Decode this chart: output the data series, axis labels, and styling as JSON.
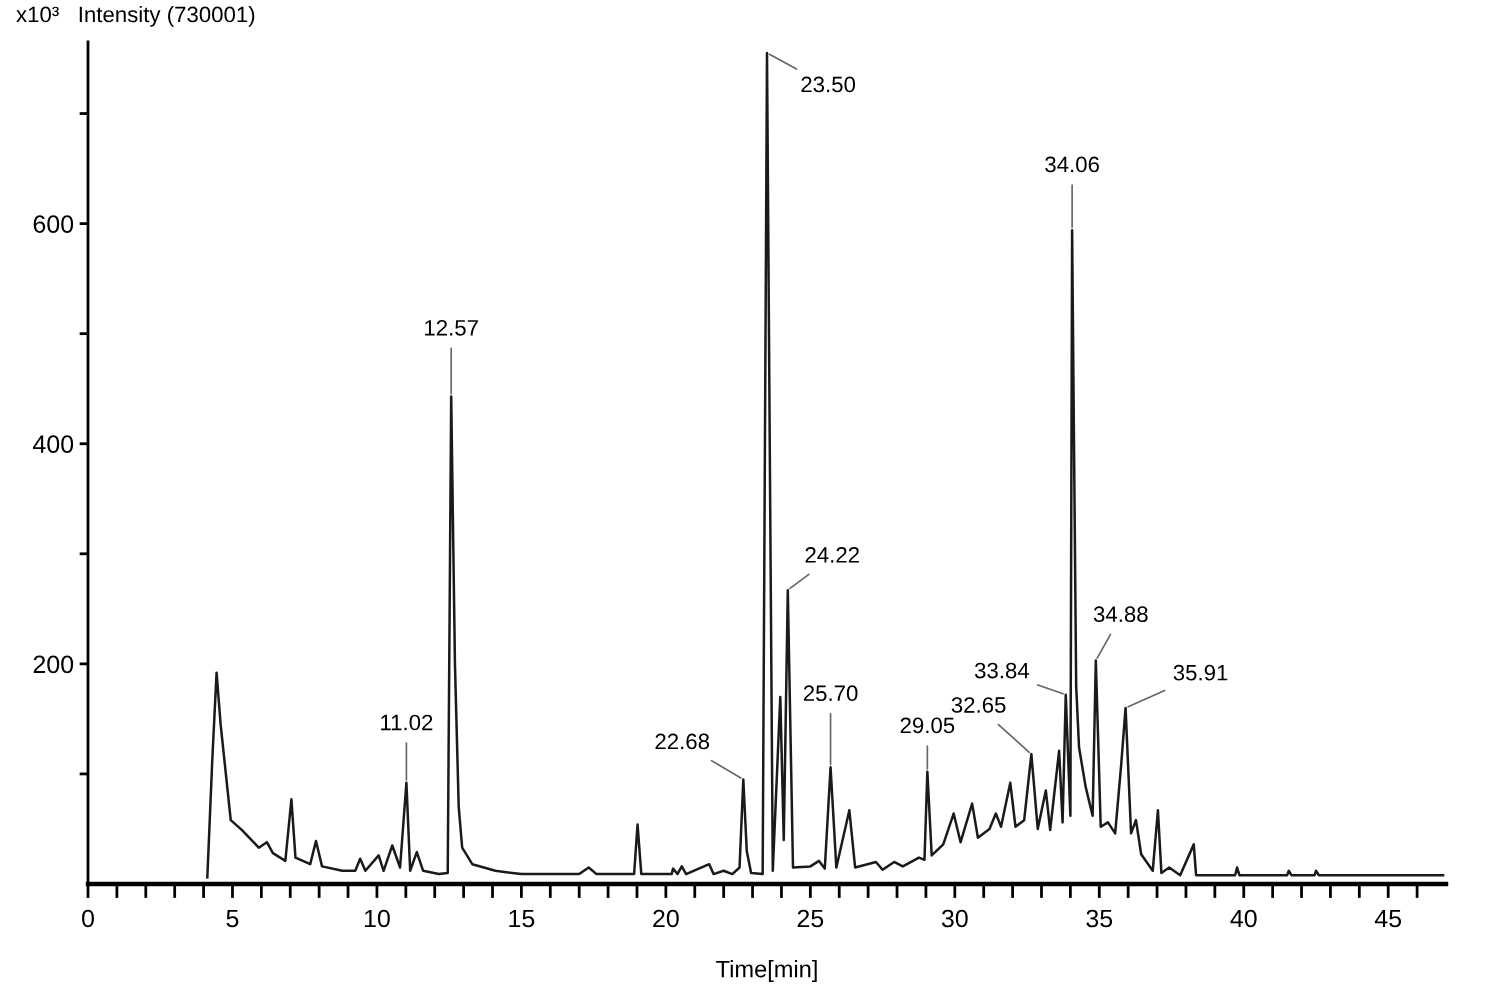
{
  "chart_data": {
    "type": "line",
    "xlabel": "Time[min]",
    "ylabel": "x10³   Intensity (730001)",
    "x": [
      4.13,
      4.3,
      4.45,
      4.59,
      4.94,
      5.33,
      5.91,
      6.19,
      6.4,
      6.83,
      7.04,
      7.18,
      7.69,
      7.89,
      8.1,
      8.8,
      9.25,
      9.42,
      9.6,
      10.06,
      10.23,
      10.53,
      10.8,
      11.02,
      11.15,
      11.38,
      11.6,
      12.14,
      12.45,
      12.57,
      12.7,
      12.83,
      12.95,
      13.3,
      14.1,
      15.0,
      16.0,
      17.0,
      17.33,
      17.6,
      18.9,
      19.02,
      19.15,
      20.2,
      20.25,
      20.4,
      20.55,
      20.7,
      21.5,
      21.65,
      22.0,
      22.3,
      22.55,
      22.68,
      22.8,
      22.95,
      23.35,
      23.5,
      23.7,
      23.96,
      24.08,
      24.22,
      24.4,
      25.0,
      25.3,
      25.5,
      25.7,
      25.9,
      26.35,
      26.55,
      27.27,
      27.5,
      27.9,
      28.2,
      28.76,
      28.95,
      29.05,
      29.2,
      29.6,
      29.96,
      30.2,
      30.6,
      30.8,
      31.2,
      31.42,
      31.6,
      31.92,
      32.1,
      32.4,
      32.65,
      32.87,
      33.15,
      33.3,
      33.61,
      33.73,
      33.84,
      34.0,
      34.06,
      34.2,
      34.3,
      34.53,
      34.77,
      34.88,
      35.05,
      35.3,
      35.55,
      35.76,
      35.91,
      36.1,
      36.27,
      36.45,
      36.85,
      37.03,
      37.15,
      37.42,
      37.8,
      38.27,
      38.35,
      39.7,
      39.77,
      39.85,
      41.5,
      41.56,
      41.65,
      42.45,
      42.5,
      42.6,
      46.9
    ],
    "series": [
      {
        "color": "#1a1a1a",
        "values": [
          6,
          112,
          192,
          145,
          58,
          49,
          33,
          38,
          28,
          21,
          77,
          24,
          18,
          39,
          16,
          12,
          12,
          23,
          12,
          26,
          12,
          35,
          15,
          92,
          12,
          29,
          12,
          9,
          10,
          443,
          200,
          70,
          33,
          18,
          12,
          9,
          9,
          9,
          15,
          9,
          9,
          54,
          9,
          9,
          14,
          9,
          16,
          9,
          18,
          9,
          12,
          9,
          15,
          95,
          30,
          10,
          9,
          755,
          12,
          170,
          40,
          267,
          15,
          16,
          21,
          14,
          106,
          15,
          67,
          15,
          20,
          13,
          20,
          16,
          24,
          22,
          102,
          26,
          36,
          64,
          38,
          73,
          42,
          50,
          64,
          52,
          92,
          52,
          58,
          118,
          50,
          85,
          49,
          121,
          56,
          172,
          62,
          594,
          180,
          124,
          88,
          62,
          203,
          52,
          56,
          46,
          109,
          160,
          46,
          58,
          27,
          12,
          67,
          10,
          15,
          8,
          36,
          8,
          8,
          15,
          8,
          8,
          12,
          8,
          8,
          12,
          8,
          8
        ]
      }
    ],
    "xlim": [
      0,
      47
    ],
    "xticks": [
      0,
      {
        "value": 1,
        "label": null
      },
      {
        "value": 2,
        "label": null
      },
      {
        "value": 3,
        "label": null
      },
      {
        "value": 4,
        "label": null
      },
      5,
      {
        "value": 6,
        "label": null
      },
      {
        "value": 7,
        "label": null
      },
      {
        "value": 8,
        "label": null
      },
      {
        "value": 9,
        "label": null
      },
      10,
      {
        "value": 11,
        "label": null
      },
      {
        "value": 12,
        "label": null
      },
      {
        "value": 13,
        "label": null
      },
      {
        "value": 14,
        "label": null
      },
      15,
      {
        "value": 16,
        "label": null
      },
      {
        "value": 17,
        "label": null
      },
      {
        "value": 18,
        "label": null
      },
      {
        "value": 19,
        "label": null
      },
      20,
      {
        "value": 21,
        "label": null
      },
      {
        "value": 22,
        "label": null
      },
      {
        "value": 23,
        "label": null
      },
      {
        "value": 24,
        "label": null
      },
      25,
      {
        "value": 26,
        "label": null
      },
      {
        "value": 27,
        "label": null
      },
      {
        "value": 28,
        "label": null
      },
      {
        "value": 29,
        "label": null
      },
      30,
      {
        "value": 31,
        "label": null
      },
      {
        "value": 32,
        "label": null
      },
      {
        "value": 33,
        "label": null
      },
      {
        "value": 34,
        "label": null
      },
      35,
      {
        "value": 36,
        "label": null
      },
      {
        "value": 37,
        "label": null
      },
      {
        "value": 38,
        "label": null
      },
      {
        "value": 39,
        "label": null
      },
      40,
      {
        "value": 41,
        "label": null
      },
      {
        "value": 42,
        "label": null
      },
      {
        "value": 43,
        "label": null
      },
      {
        "value": 44,
        "label": null
      },
      45,
      {
        "value": 46,
        "label": null
      }
    ],
    "ylim": [
      0,
      765
    ],
    "yticks": [
      {
        "value": 100,
        "label": null
      },
      200,
      {
        "value": 300,
        "label": null
      },
      400,
      {
        "value": 500,
        "label": null
      },
      600,
      {
        "value": 700,
        "label": null
      }
    ],
    "line_style": "solid",
    "annotations": [
      {
        "text": "11.02",
        "x": 11.02,
        "y": 92
      },
      {
        "text": "12.57",
        "x": 12.57,
        "y": 443
      },
      {
        "text": "22.68",
        "x": 22.68,
        "y": 95
      },
      {
        "text": "23.50",
        "x": 23.5,
        "y": 755
      },
      {
        "text": "24.22",
        "x": 24.22,
        "y": 267
      },
      {
        "text": "25.70",
        "x": 25.7,
        "y": 106
      },
      {
        "text": "29.05",
        "x": 29.05,
        "y": 102
      },
      {
        "text": "32.65",
        "x": 32.65,
        "y": 118
      },
      {
        "text": "33.84",
        "x": 33.84,
        "y": 172
      },
      {
        "text": "34.06",
        "x": 34.06,
        "y": 594
      },
      {
        "text": "34.88",
        "x": 34.88,
        "y": 203
      },
      {
        "text": "35.91",
        "x": 35.91,
        "y": 160
      }
    ]
  }
}
